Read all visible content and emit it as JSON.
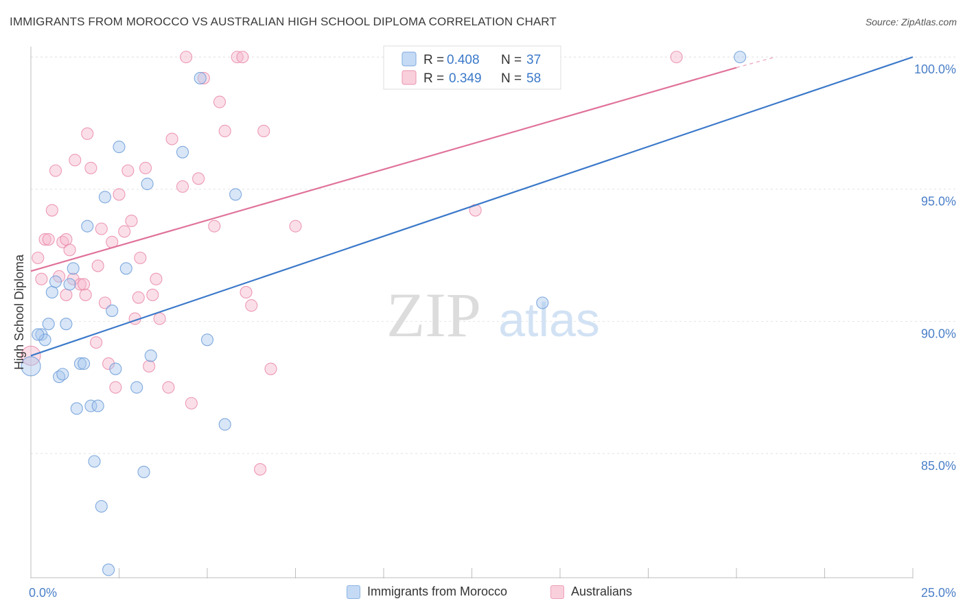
{
  "chart_data": {
    "type": "scatter",
    "title": "IMMIGRANTS FROM MOROCCO VS AUSTRALIAN HIGH SCHOOL DIPLOMA CORRELATION CHART",
    "source": "Source: ZipAtlas.com",
    "watermark": {
      "zip": "ZIP",
      "atlas": "atlas"
    },
    "ylabel": "High School Diploma",
    "xlabel": "",
    "xlim": [
      0,
      25
    ],
    "ylim": [
      80.3,
      100.6
    ],
    "x_tick_labels": [
      "0.0%",
      "25.0%"
    ],
    "y_ticks": [
      {
        "value": 85,
        "label": "85.0%"
      },
      {
        "value": 90,
        "label": "90.0%"
      },
      {
        "value": 95,
        "label": "95.0%"
      },
      {
        "value": 100,
        "label": "100.0%"
      }
    ],
    "legend": [
      {
        "r_label": "R = ",
        "r_value": "0.408",
        "n_label": "N = ",
        "n_value": "37"
      },
      {
        "r_label": "R = ",
        "r_value": "0.349",
        "n_label": "N = ",
        "n_value": "58"
      }
    ],
    "colors": {
      "blue_fill": "#a9c8ee",
      "blue_stroke": "#6b9bd8",
      "blue_line": "#3a78c9",
      "pink_fill": "#f6b8cb",
      "pink_stroke": "#e98aa8",
      "pink_line": "#e0729a",
      "value_text": "#3a78c9",
      "axis_text": "#4a7fc8"
    },
    "series": [
      {
        "name": "Immigrants from Morocco",
        "trend": {
          "x0": 0,
          "y0": 88.7,
          "x1": 25,
          "y1": 100.0
        },
        "points": [
          {
            "x": 0.0,
            "y": 88.3,
            "r": 14
          },
          {
            "x": 0.3,
            "y": 89.5
          },
          {
            "x": 0.4,
            "y": 89.3
          },
          {
            "x": 0.5,
            "y": 89.9
          },
          {
            "x": 0.6,
            "y": 91.1
          },
          {
            "x": 0.7,
            "y": 91.5
          },
          {
            "x": 0.8,
            "y": 87.9
          },
          {
            "x": 0.9,
            "y": 88.0
          },
          {
            "x": 1.0,
            "y": 89.9
          },
          {
            "x": 1.1,
            "y": 91.4
          },
          {
            "x": 1.2,
            "y": 92.0
          },
          {
            "x": 1.3,
            "y": 86.7
          },
          {
            "x": 1.4,
            "y": 88.4
          },
          {
            "x": 1.5,
            "y": 88.4
          },
          {
            "x": 1.6,
            "y": 93.6
          },
          {
            "x": 1.7,
            "y": 86.8
          },
          {
            "x": 1.8,
            "y": 84.7
          },
          {
            "x": 1.9,
            "y": 86.8
          },
          {
            "x": 2.0,
            "y": 83.0
          },
          {
            "x": 2.1,
            "y": 94.7
          },
          {
            "x": 2.2,
            "y": 80.6
          },
          {
            "x": 2.3,
            "y": 90.4
          },
          {
            "x": 2.4,
            "y": 88.2
          },
          {
            "x": 2.5,
            "y": 96.6
          },
          {
            "x": 2.7,
            "y": 92.0
          },
          {
            "x": 3.0,
            "y": 87.5
          },
          {
            "x": 3.2,
            "y": 84.3
          },
          {
            "x": 3.3,
            "y": 95.2
          },
          {
            "x": 3.4,
            "y": 88.7
          },
          {
            "x": 4.3,
            "y": 96.4
          },
          {
            "x": 4.8,
            "y": 99.2
          },
          {
            "x": 5.0,
            "y": 89.3
          },
          {
            "x": 5.5,
            "y": 86.1
          },
          {
            "x": 5.8,
            "y": 94.8
          },
          {
            "x": 14.5,
            "y": 90.7
          },
          {
            "x": 20.1,
            "y": 100.0
          },
          {
            "x": 0.2,
            "y": 89.5
          }
        ]
      },
      {
        "name": "Australians",
        "trend": {
          "x0": 0,
          "y0": 91.9,
          "x1": 20.0,
          "y1": 99.6,
          "dash_x1": 21.1,
          "dash_y1": 100.0
        },
        "points": [
          {
            "x": 0.0,
            "y": 88.7,
            "r": 14
          },
          {
            "x": 0.2,
            "y": 92.4
          },
          {
            "x": 0.3,
            "y": 91.6
          },
          {
            "x": 0.4,
            "y": 93.1
          },
          {
            "x": 0.5,
            "y": 93.1
          },
          {
            "x": 0.6,
            "y": 94.2
          },
          {
            "x": 0.7,
            "y": 95.7
          },
          {
            "x": 0.8,
            "y": 91.7
          },
          {
            "x": 0.9,
            "y": 93.0
          },
          {
            "x": 1.0,
            "y": 91.0
          },
          {
            "x": 1.1,
            "y": 92.7
          },
          {
            "x": 1.2,
            "y": 91.6
          },
          {
            "x": 1.25,
            "y": 96.1
          },
          {
            "x": 1.4,
            "y": 91.4
          },
          {
            "x": 1.5,
            "y": 91.4
          },
          {
            "x": 1.55,
            "y": 91.0
          },
          {
            "x": 1.6,
            "y": 97.1
          },
          {
            "x": 1.7,
            "y": 95.8
          },
          {
            "x": 1.85,
            "y": 89.2
          },
          {
            "x": 1.9,
            "y": 92.1
          },
          {
            "x": 2.0,
            "y": 93.5
          },
          {
            "x": 2.1,
            "y": 90.7
          },
          {
            "x": 2.2,
            "y": 88.4
          },
          {
            "x": 2.3,
            "y": 93.0
          },
          {
            "x": 2.4,
            "y": 87.5
          },
          {
            "x": 2.5,
            "y": 94.8
          },
          {
            "x": 2.65,
            "y": 93.4
          },
          {
            "x": 2.75,
            "y": 95.7
          },
          {
            "x": 2.85,
            "y": 93.8
          },
          {
            "x": 2.95,
            "y": 90.1
          },
          {
            "x": 3.05,
            "y": 90.9
          },
          {
            "x": 3.1,
            "y": 92.4
          },
          {
            "x": 3.25,
            "y": 95.8
          },
          {
            "x": 3.35,
            "y": 88.3
          },
          {
            "x": 3.45,
            "y": 91.0
          },
          {
            "x": 3.55,
            "y": 91.6
          },
          {
            "x": 3.65,
            "y": 90.1
          },
          {
            "x": 3.9,
            "y": 87.5
          },
          {
            "x": 4.0,
            "y": 96.9
          },
          {
            "x": 4.3,
            "y": 95.1
          },
          {
            "x": 4.4,
            "y": 100.0
          },
          {
            "x": 4.55,
            "y": 86.9
          },
          {
            "x": 4.75,
            "y": 95.4
          },
          {
            "x": 4.9,
            "y": 99.2
          },
          {
            "x": 5.2,
            "y": 93.6
          },
          {
            "x": 5.35,
            "y": 98.3
          },
          {
            "x": 5.5,
            "y": 97.2
          },
          {
            "x": 5.85,
            "y": 100.0
          },
          {
            "x": 6.0,
            "y": 100.0
          },
          {
            "x": 6.1,
            "y": 91.1
          },
          {
            "x": 6.25,
            "y": 90.6
          },
          {
            "x": 6.5,
            "y": 84.4
          },
          {
            "x": 6.6,
            "y": 97.2
          },
          {
            "x": 6.8,
            "y": 88.2
          },
          {
            "x": 7.5,
            "y": 93.6
          },
          {
            "x": 12.6,
            "y": 94.2
          },
          {
            "x": 18.3,
            "y": 100.0
          },
          {
            "x": 1.0,
            "y": 93.1
          }
        ]
      }
    ]
  }
}
